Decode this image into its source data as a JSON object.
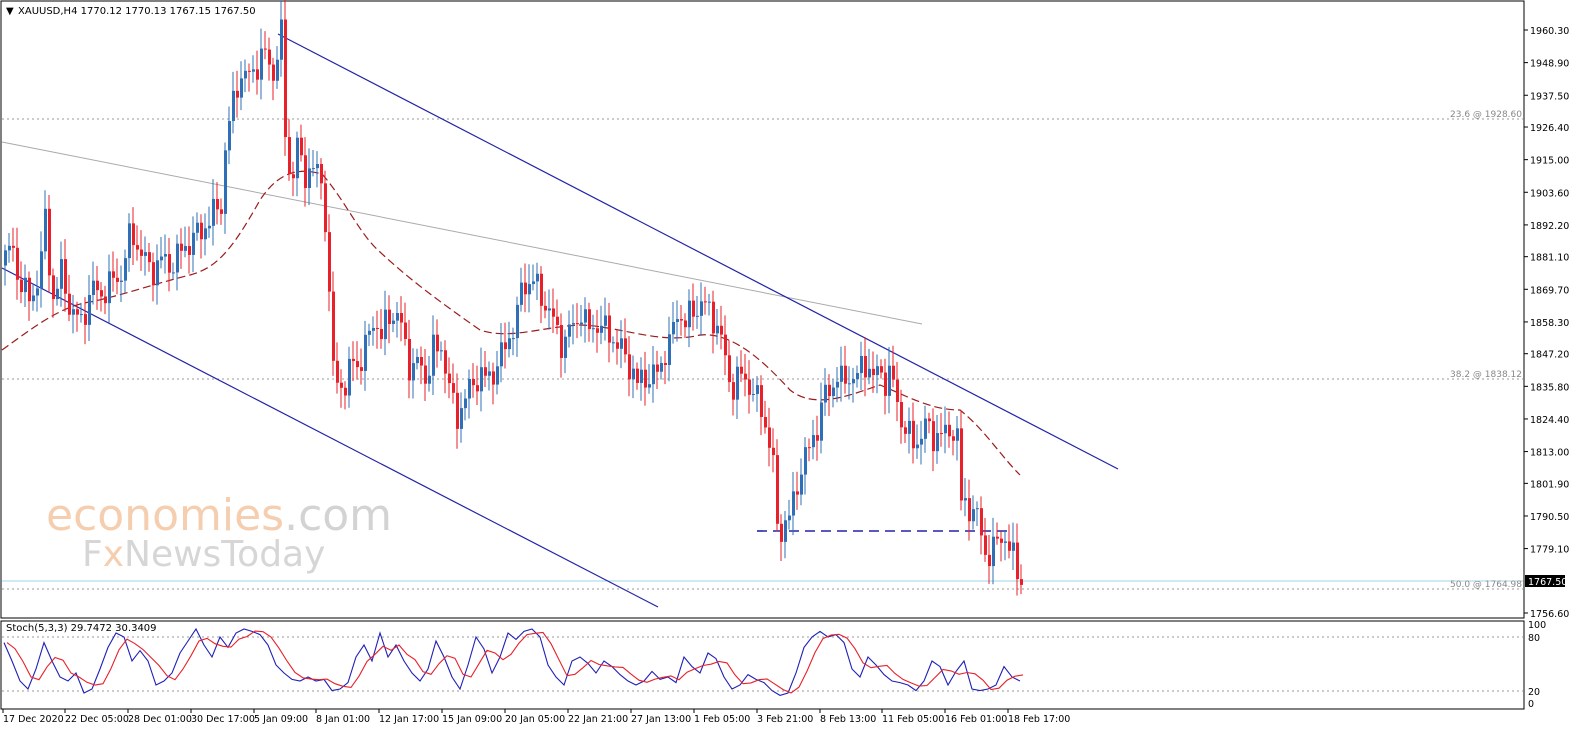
{
  "header": {
    "symbol_line": "XAUUSD,H4  1770.12 1770.13 1767.15 1767.50"
  },
  "oscillator": {
    "label": "Stoch(5,3,3) 29.7472 30.3409",
    "levels": [
      "100",
      "80",
      "20",
      "0"
    ],
    "k_color": "#1f1fb8",
    "d_color": "#e8202a"
  },
  "watermark": {
    "line1_a": "economies",
    "line1_b": ".com",
    "line2_a": "F",
    "line2_b": "x",
    "line2_c": "NewsToday"
  },
  "fib_labels": {
    "f236": "23.6 @ 1928.60",
    "f382": "38.2 @ 1838.12",
    "f500": "50.0 @ 1764.98"
  },
  "price_badge": "1767.50",
  "colors": {
    "bull": "#2f6fb7",
    "bear": "#e8202a",
    "trend": "#2323a8",
    "ma": "#9b1b1b",
    "grey_line": "#aaaaaa"
  },
  "chart_data": {
    "type": "candlestick",
    "title": "XAUUSD,H4",
    "ylim": [
      1751,
      1967
    ],
    "y_ticks": [
      "1960.30",
      "1948.90",
      "1937.50",
      "1926.40",
      "1915.00",
      "1903.60",
      "1892.20",
      "1881.10",
      "1869.70",
      "1858.30",
      "1847.20",
      "1835.80",
      "1824.40",
      "1813.00",
      "1801.90",
      "1790.50",
      "1779.10",
      "1756.60"
    ],
    "x_ticks": [
      "17 Dec 2020",
      "22 Dec 05:00",
      "28 Dec 01:00",
      "30 Dec 17:00",
      "5 Jan 09:00",
      "8 Jan 01:00",
      "12 Jan 17:00",
      "15 Jan 09:00",
      "20 Jan 05:00",
      "22 Jan 21:00",
      "27 Jan 13:00",
      "1 Feb 05:00",
      "3 Feb 21:00",
      "8 Feb 13:00",
      "11 Feb 05:00",
      "16 Feb 01:00",
      "18 Feb 17:00"
    ],
    "last_price": 1767.5,
    "fibonacci": [
      {
        "level": 23.6,
        "price": 1928.6
      },
      {
        "level": 38.2,
        "price": 1838.12
      },
      {
        "level": 50.0,
        "price": 1764.98
      }
    ],
    "close_path": [
      [
        0,
        1878
      ],
      [
        10,
        1885
      ],
      [
        20,
        1871
      ],
      [
        30,
        1865
      ],
      [
        40,
        1880
      ],
      [
        45,
        1898
      ],
      [
        50,
        1865
      ],
      [
        60,
        1875
      ],
      [
        70,
        1862
      ],
      [
        80,
        1858
      ],
      [
        90,
        1870
      ],
      [
        100,
        1868
      ],
      [
        110,
        1872
      ],
      [
        120,
        1875
      ],
      [
        130,
        1890
      ],
      [
        140,
        1882
      ],
      [
        150,
        1876
      ],
      [
        160,
        1880
      ],
      [
        170,
        1878
      ],
      [
        180,
        1883
      ],
      [
        190,
        1887
      ],
      [
        200,
        1890
      ],
      [
        210,
        1895
      ],
      [
        220,
        1900
      ],
      [
        225,
        1922
      ],
      [
        232,
        1935
      ],
      [
        238,
        1945
      ],
      [
        245,
        1943
      ],
      [
        255,
        1948
      ],
      [
        265,
        1952
      ],
      [
        272,
        1945
      ],
      [
        280,
        1958
      ],
      [
        284,
        1925
      ],
      [
        290,
        1905
      ],
      [
        296,
        1920
      ],
      [
        302,
        1910
      ],
      [
        310,
        1912
      ],
      [
        316,
        1910
      ],
      [
        322,
        1908
      ],
      [
        326,
        1880
      ],
      [
        330,
        1850
      ],
      [
        335,
        1835
      ],
      [
        340,
        1840
      ],
      [
        345,
        1830
      ],
      [
        350,
        1848
      ],
      [
        358,
        1842
      ],
      [
        365,
        1850
      ],
      [
        372,
        1860
      ],
      [
        380,
        1852
      ],
      [
        387,
        1862
      ],
      [
        395,
        1860
      ],
      [
        402,
        1855
      ],
      [
        410,
        1840
      ],
      [
        418,
        1845
      ],
      [
        425,
        1838
      ],
      [
        432,
        1848
      ],
      [
        440,
        1850
      ],
      [
        448,
        1835
      ],
      [
        455,
        1825
      ],
      [
        462,
        1830
      ],
      [
        470,
        1836
      ],
      [
        478,
        1840
      ],
      [
        486,
        1838
      ],
      [
        494,
        1842
      ],
      [
        502,
        1848
      ],
      [
        510,
        1855
      ],
      [
        516,
        1860
      ],
      [
        520,
        1870
      ],
      [
        526,
        1872
      ],
      [
        532,
        1873
      ],
      [
        538,
        1868
      ],
      [
        544,
        1865
      ],
      [
        550,
        1860
      ],
      [
        556,
        1855
      ],
      [
        562,
        1850
      ],
      [
        568,
        1855
      ],
      [
        574,
        1858
      ],
      [
        580,
        1862
      ],
      [
        586,
        1855
      ],
      [
        594,
        1858
      ],
      [
        600,
        1856
      ],
      [
        608,
        1855
      ],
      [
        615,
        1850
      ],
      [
        622,
        1848
      ],
      [
        630,
        1842
      ],
      [
        636,
        1836
      ],
      [
        642,
        1840
      ],
      [
        650,
        1838
      ],
      [
        658,
        1842
      ],
      [
        664,
        1848
      ],
      [
        670,
        1852
      ],
      [
        676,
        1862
      ],
      [
        684,
        1858
      ],
      [
        692,
        1862
      ],
      [
        700,
        1865
      ],
      [
        706,
        1863
      ],
      [
        712,
        1860
      ],
      [
        718,
        1855
      ],
      [
        724,
        1845
      ],
      [
        730,
        1835
      ],
      [
        736,
        1838
      ],
      [
        742,
        1840
      ],
      [
        748,
        1836
      ],
      [
        754,
        1832
      ],
      [
        760,
        1828
      ],
      [
        766,
        1820
      ],
      [
        772,
        1808
      ],
      [
        776,
        1786
      ],
      [
        782,
        1787
      ],
      [
        788,
        1790
      ],
      [
        794,
        1798
      ],
      [
        800,
        1808
      ],
      [
        806,
        1812
      ],
      [
        812,
        1818
      ],
      [
        818,
        1824
      ],
      [
        822,
        1832
      ],
      [
        830,
        1835
      ],
      [
        836,
        1840
      ],
      [
        842,
        1836
      ],
      [
        848,
        1840
      ],
      [
        854,
        1838
      ],
      [
        860,
        1842
      ],
      [
        866,
        1845
      ],
      [
        872,
        1838
      ],
      [
        878,
        1842
      ],
      [
        884,
        1838
      ],
      [
        890,
        1840
      ],
      [
        896,
        1830
      ],
      [
        902,
        1822
      ],
      [
        908,
        1818
      ],
      [
        914,
        1815
      ],
      [
        920,
        1820
      ],
      [
        926,
        1822
      ],
      [
        932,
        1818
      ],
      [
        938,
        1820
      ],
      [
        944,
        1818
      ],
      [
        950,
        1822
      ],
      [
        956,
        1818
      ],
      [
        960,
        1795
      ],
      [
        966,
        1795
      ],
      [
        972,
        1792
      ],
      [
        978,
        1788
      ],
      [
        984,
        1778
      ],
      [
        990,
        1776
      ],
      [
        996,
        1782
      ],
      [
        1002,
        1785
      ],
      [
        1008,
        1778
      ],
      [
        1014,
        1775
      ],
      [
        1020,
        1768
      ]
    ],
    "series": [
      {
        "name": "MA",
        "style": "dashed"
      }
    ],
    "stochastic_k_path": [
      [
        0,
        78
      ],
      [
        8,
        55
      ],
      [
        16,
        30
      ],
      [
        24,
        20
      ],
      [
        32,
        45
      ],
      [
        40,
        78
      ],
      [
        48,
        55
      ],
      [
        56,
        35
      ],
      [
        64,
        30
      ],
      [
        72,
        40
      ],
      [
        80,
        15
      ],
      [
        88,
        20
      ],
      [
        96,
        45
      ],
      [
        104,
        72
      ],
      [
        112,
        90
      ],
      [
        120,
        85
      ],
      [
        128,
        55
      ],
      [
        136,
        68
      ],
      [
        144,
        55
      ],
      [
        152,
        25
      ],
      [
        160,
        30
      ],
      [
        168,
        40
      ],
      [
        176,
        65
      ],
      [
        184,
        80
      ],
      [
        192,
        95
      ],
      [
        200,
        75
      ],
      [
        208,
        60
      ],
      [
        216,
        85
      ],
      [
        224,
        72
      ],
      [
        232,
        90
      ],
      [
        240,
        95
      ],
      [
        248,
        92
      ],
      [
        256,
        88
      ],
      [
        264,
        75
      ],
      [
        272,
        50
      ],
      [
        280,
        40
      ],
      [
        288,
        32
      ],
      [
        296,
        30
      ],
      [
        304,
        35
      ],
      [
        312,
        30
      ],
      [
        320,
        32
      ],
      [
        328,
        18
      ],
      [
        336,
        20
      ],
      [
        344,
        28
      ],
      [
        352,
        60
      ],
      [
        360,
        75
      ],
      [
        368,
        55
      ],
      [
        376,
        90
      ],
      [
        384,
        60
      ],
      [
        392,
        75
      ],
      [
        400,
        55
      ],
      [
        408,
        40
      ],
      [
        416,
        30
      ],
      [
        424,
        45
      ],
      [
        432,
        80
      ],
      [
        440,
        60
      ],
      [
        448,
        35
      ],
      [
        456,
        20
      ],
      [
        464,
        50
      ],
      [
        472,
        85
      ],
      [
        480,
        70
      ],
      [
        488,
        40
      ],
      [
        496,
        60
      ],
      [
        504,
        90
      ],
      [
        512,
        82
      ],
      [
        520,
        92
      ],
      [
        528,
        95
      ],
      [
        536,
        85
      ],
      [
        544,
        50
      ],
      [
        552,
        35
      ],
      [
        560,
        25
      ],
      [
        568,
        55
      ],
      [
        576,
        60
      ],
      [
        584,
        52
      ],
      [
        592,
        40
      ],
      [
        600,
        55
      ],
      [
        608,
        48
      ],
      [
        616,
        38
      ],
      [
        624,
        30
      ],
      [
        632,
        25
      ],
      [
        640,
        30
      ],
      [
        648,
        42
      ],
      [
        656,
        32
      ],
      [
        664,
        35
      ],
      [
        672,
        28
      ],
      [
        680,
        60
      ],
      [
        688,
        48
      ],
      [
        696,
        40
      ],
      [
        704,
        65
      ],
      [
        712,
        58
      ],
      [
        720,
        35
      ],
      [
        728,
        20
      ],
      [
        736,
        25
      ],
      [
        744,
        38
      ],
      [
        752,
        32
      ],
      [
        760,
        28
      ],
      [
        768,
        18
      ],
      [
        776,
        12
      ],
      [
        784,
        15
      ],
      [
        792,
        40
      ],
      [
        800,
        72
      ],
      [
        808,
        85
      ],
      [
        816,
        92
      ],
      [
        824,
        85
      ],
      [
        832,
        88
      ],
      [
        840,
        78
      ],
      [
        848,
        45
      ],
      [
        856,
        35
      ],
      [
        864,
        60
      ],
      [
        872,
        50
      ],
      [
        880,
        38
      ],
      [
        888,
        30
      ],
      [
        896,
        28
      ],
      [
        904,
        25
      ],
      [
        912,
        18
      ],
      [
        920,
        30
      ],
      [
        928,
        55
      ],
      [
        936,
        48
      ],
      [
        944,
        25
      ],
      [
        952,
        42
      ],
      [
        960,
        55
      ],
      [
        968,
        20
      ],
      [
        976,
        18
      ],
      [
        984,
        20
      ],
      [
        992,
        25
      ],
      [
        1000,
        48
      ],
      [
        1008,
        35
      ],
      [
        1016,
        30
      ]
    ]
  }
}
